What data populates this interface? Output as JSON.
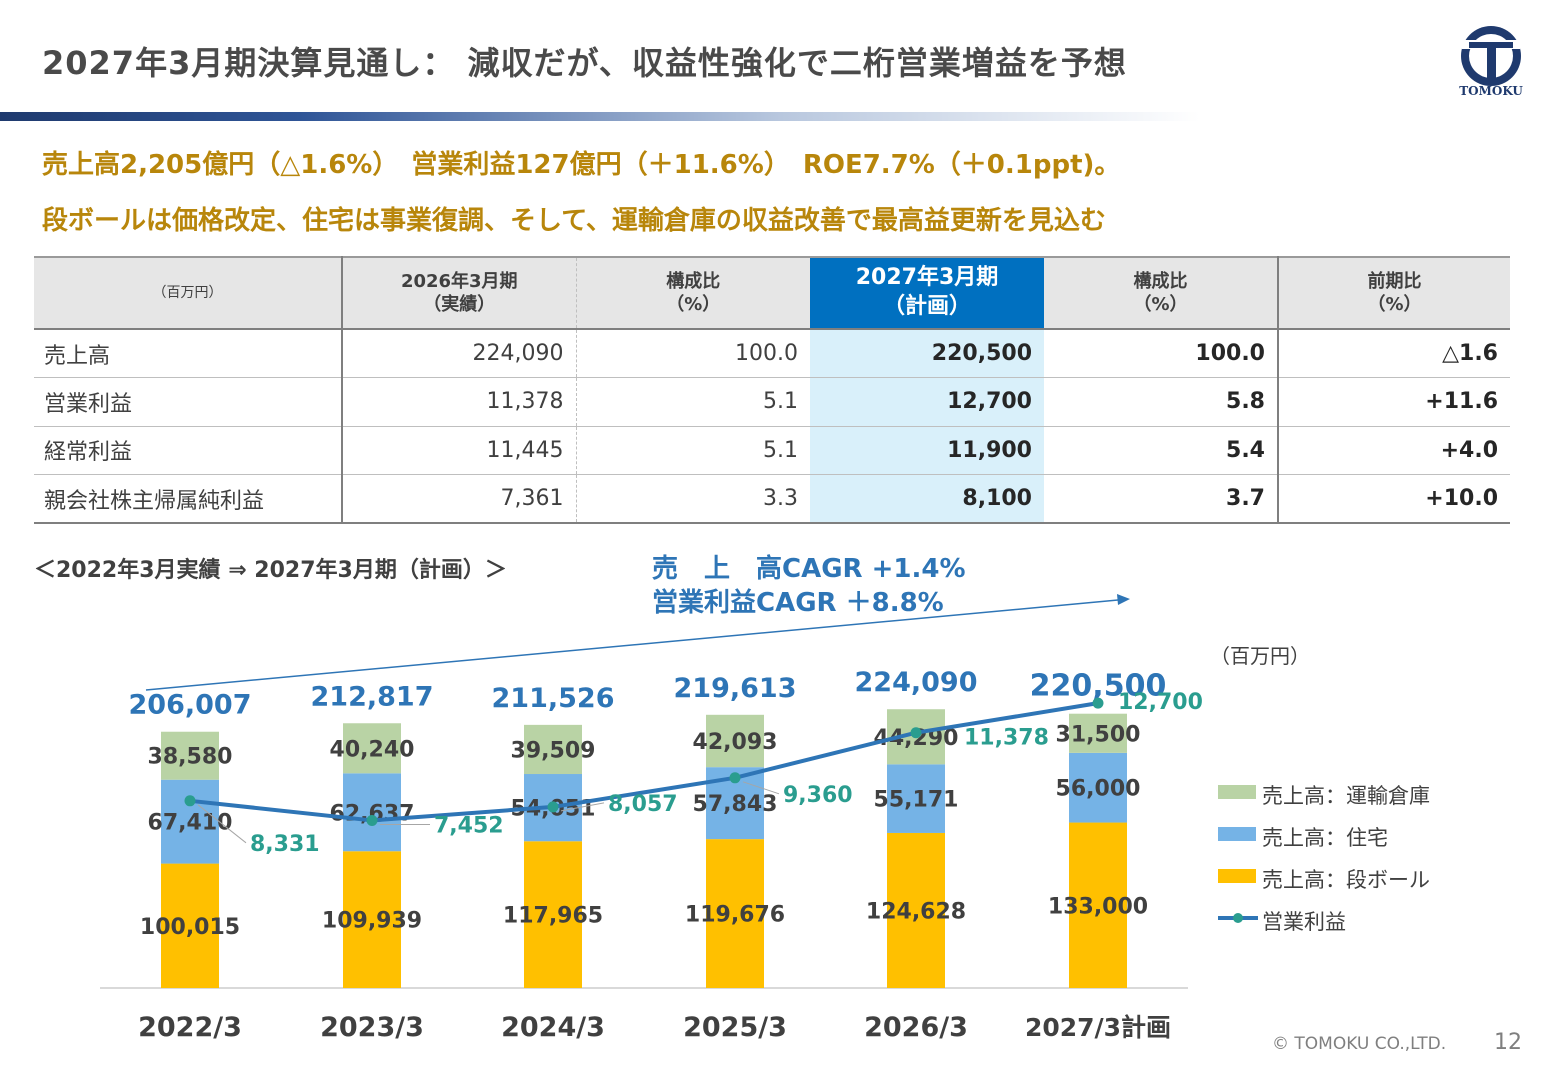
{
  "title": "2027年3月期決算見通し： 減収だが、収益性強化で二桁営業増益を予想",
  "logo_text": "TOMOKU",
  "headline": {
    "line1": "売上高2,205億円（△1.6%）　営業利益127億円（＋11.6%）　ROE7.7%（＋0.1ppt)。",
    "line2": "段ボールは価格改定、住宅は事業復調、そして、運輸倉庫の収益改善で最高益更新を見込む"
  },
  "table": {
    "unit": "（百万円）",
    "headers": [
      {
        "l1": "2026年3月期",
        "l2": "（実績）"
      },
      {
        "l1": "構成比",
        "l2": "（%）"
      },
      {
        "l1": "2027年3月期",
        "l2": "（計画）"
      },
      {
        "l1": "構成比",
        "l2": "（%）"
      },
      {
        "l1": "前期比",
        "l2": "（%）"
      }
    ],
    "rows": [
      {
        "label": "売上高",
        "v": [
          "224,090",
          "100.0",
          "220,500",
          "100.0",
          "△1.6"
        ]
      },
      {
        "label": "営業利益",
        "v": [
          "11,378",
          "5.1",
          "12,700",
          "5.8",
          "+11.6"
        ]
      },
      {
        "label": "経常利益",
        "v": [
          "11,445",
          "5.1",
          "11,900",
          "5.4",
          "+4.0"
        ]
      },
      {
        "label": "親会社株主帰属純利益",
        "v": [
          "7,361",
          "3.3",
          "8,100",
          "3.7",
          "+10.0"
        ]
      }
    ]
  },
  "range_label": "＜2022年3月実績 ⇒ 2027年3月期（計画）＞",
  "cagr": {
    "sales": "売　上　高CAGR +1.4%",
    "op": "営業利益CAGR ＋8.8%"
  },
  "chart_unit": "（百万円）",
  "chart_data": {
    "type": "bar",
    "stacked": true,
    "categories": [
      "2022/3",
      "2023/3",
      "2024/3",
      "2025/3",
      "2026/3",
      "2027/3計画"
    ],
    "totals": [
      "206,007",
      "212,817",
      "211,526",
      "219,613",
      "224,090",
      "220,500"
    ],
    "series": [
      {
        "name": "売上高：段ボール",
        "color": "#ffc000",
        "values": [
          100015,
          109939,
          117965,
          119676,
          124628,
          133000
        ],
        "labels": [
          "100,015",
          "109,939",
          "117,965",
          "119,676",
          "124,628",
          "133,000"
        ]
      },
      {
        "name": "売上高：住宅",
        "color": "#75b3e6",
        "values": [
          67410,
          62637,
          54051,
          57843,
          55171,
          56000
        ],
        "labels": [
          "67,410",
          "62,637",
          "54,051",
          "57,843",
          "55,171",
          "56,000"
        ]
      },
      {
        "name": "売上高：運輸倉庫",
        "color": "#b9d3a5",
        "values": [
          38580,
          40240,
          39509,
          42093,
          44290,
          31500
        ],
        "labels": [
          "38,580",
          "40,240",
          "39,509",
          "42,093",
          "44,290",
          "31,500"
        ]
      }
    ],
    "line": {
      "name": "営業利益",
      "color": "#2e75b6",
      "marker_color": "#2a9d8f",
      "values": [
        8331,
        7452,
        8057,
        9360,
        11378,
        12700
      ],
      "labels": [
        "8,331",
        "7,452",
        "8,057",
        "9,360",
        "11,378",
        "12,700"
      ]
    },
    "legend": [
      {
        "name": "売上高：運輸倉庫",
        "color": "#b9d3a5"
      },
      {
        "name": "売上高：住宅",
        "color": "#75b3e6"
      },
      {
        "name": "売上高：段ボール",
        "color": "#ffc000"
      },
      {
        "name": "営業利益",
        "color": "#2e75b6"
      }
    ],
    "legend_position": "right"
  },
  "footer": {
    "copyright": "© TOMOKU CO.,LTD.",
    "page": "12"
  }
}
